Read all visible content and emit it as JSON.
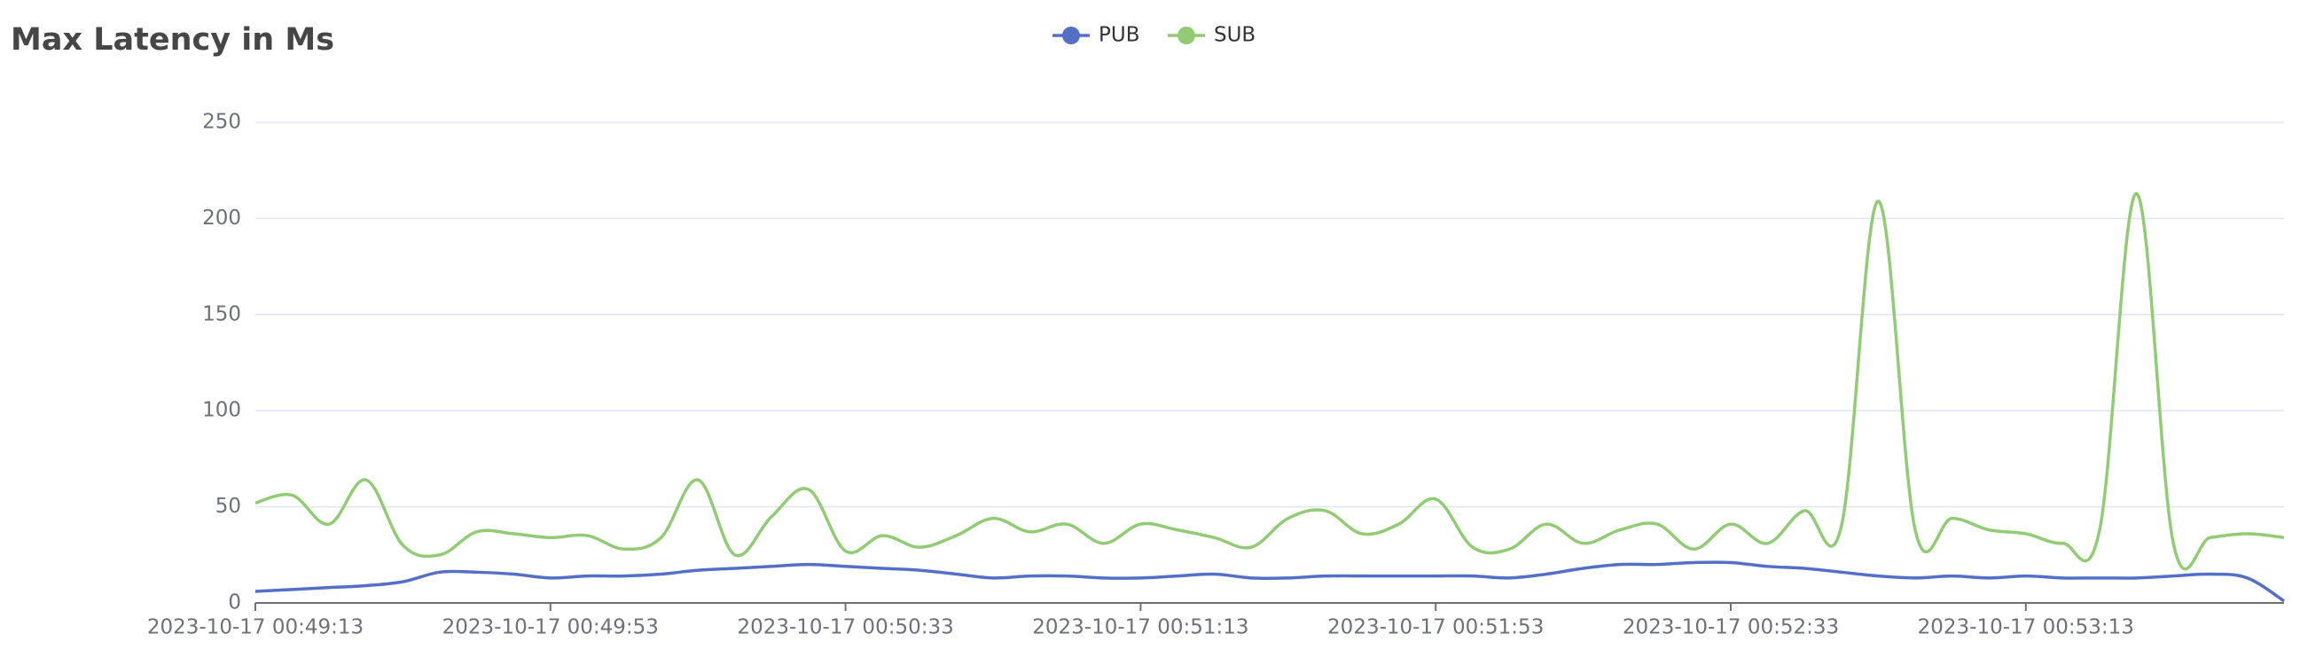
{
  "chart_data": {
    "type": "line",
    "title": "Max Latency in Ms",
    "categories": [
      "2023-10-17 00:49:13",
      null,
      null,
      null,
      null,
      null,
      null,
      null,
      "2023-10-17 00:49:53",
      null,
      null,
      null,
      null,
      null,
      null,
      null,
      "2023-10-17 00:50:33",
      null,
      null,
      null,
      null,
      null,
      null,
      null,
      "2023-10-17 00:51:13",
      null,
      null,
      null,
      null,
      null,
      null,
      null,
      "2023-10-17 00:51:53",
      null,
      null,
      null,
      null,
      null,
      null,
      null,
      "2023-10-17 00:52:33",
      null,
      null,
      null,
      null,
      null,
      null,
      null,
      "2023-10-17 00:53:13",
      null,
      null,
      null,
      null,
      null,
      null,
      null
    ],
    "series": [
      {
        "name": "PUB",
        "color": "#5470c6",
        "values": [
          6,
          7,
          8,
          9,
          11,
          16,
          16,
          15,
          13,
          14,
          14,
          15,
          17,
          18,
          19,
          20,
          19,
          18,
          17,
          15,
          13,
          14,
          14,
          13,
          13,
          14,
          15,
          13,
          13,
          14,
          14,
          14,
          14,
          14,
          13,
          15,
          18,
          20,
          20,
          21,
          21,
          19,
          18,
          16,
          14,
          13,
          14,
          13,
          14,
          13,
          13,
          13,
          14,
          15,
          13,
          1
        ]
      },
      {
        "name": "SUB",
        "color": "#91cc75",
        "values": [
          52,
          56,
          41,
          64,
          30,
          25,
          37,
          36,
          34,
          35,
          28,
          34,
          64,
          25,
          45,
          59,
          27,
          35,
          29,
          35,
          44,
          37,
          41,
          31,
          41,
          38,
          34,
          29,
          44,
          48,
          36,
          41,
          54,
          29,
          28,
          41,
          31,
          38,
          41,
          28,
          41,
          31,
          48,
          40,
          209,
          38,
          44,
          38,
          36,
          31,
          38,
          213,
          31,
          34,
          36,
          34
        ]
      }
    ],
    "ylim": [
      0,
      250
    ],
    "yticks": [
      0,
      50,
      100,
      150,
      200,
      250
    ],
    "grid": true,
    "legend": "top"
  }
}
